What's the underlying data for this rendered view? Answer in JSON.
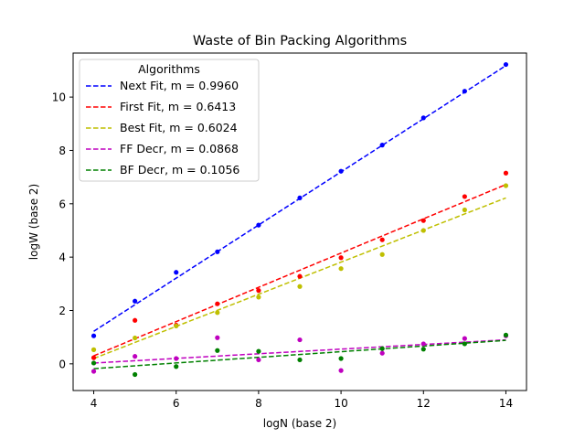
{
  "chart_data": {
    "type": "scatter",
    "title": "Waste of Bin Packing Algorithms",
    "xlabel": "logN (base 2)",
    "ylabel": "logW (base 2)",
    "xlim": [
      3.5,
      14.5
    ],
    "ylim": [
      -1.0,
      11.65
    ],
    "xticks": [
      "4",
      "6",
      "8",
      "10",
      "12",
      "14"
    ],
    "yticks": [
      "0",
      "2",
      "4",
      "6",
      "8",
      "10"
    ],
    "grid": false,
    "legend": {
      "title": "Algorithms",
      "position": "top-left"
    },
    "x": [
      4,
      5,
      6,
      7,
      8,
      9,
      10,
      11,
      12,
      13,
      14
    ],
    "series": [
      {
        "name": "Next Fit, m = 0.9960",
        "color": "#0000ff",
        "points": [
          1.05,
          2.35,
          3.43,
          4.2,
          5.2,
          6.22,
          7.22,
          8.2,
          9.22,
          10.22,
          11.22
        ],
        "fit": {
          "start": 1.22,
          "end": 11.18
        }
      },
      {
        "name": "First Fit, m = 0.6413",
        "color": "#ff0000",
        "points": [
          0.23,
          1.63,
          1.45,
          2.25,
          2.75,
          3.28,
          3.98,
          4.65,
          5.37,
          6.27,
          7.15
        ],
        "fit": {
          "start": 0.3,
          "end": 6.72
        }
      },
      {
        "name": "Best Fit, m = 0.6024",
        "color": "#bfbf00",
        "points": [
          0.53,
          0.97,
          1.42,
          1.92,
          2.5,
          2.9,
          3.57,
          4.1,
          5.0,
          5.77,
          6.68
        ],
        "fit": {
          "start": 0.2,
          "end": 6.22
        }
      },
      {
        "name": "FF Decr, m = 0.0868",
        "color": "#bf00bf",
        "points": [
          -0.28,
          0.28,
          0.2,
          0.98,
          0.15,
          0.9,
          -0.25,
          0.4,
          0.75,
          0.95,
          1.05
        ],
        "fit": {
          "start": 0.03,
          "end": 0.9
        }
      },
      {
        "name": "BF Decr, m = 0.1056",
        "color": "#008000",
        "points": [
          0.03,
          -0.4,
          -0.1,
          0.5,
          0.47,
          0.15,
          0.2,
          0.57,
          0.55,
          0.75,
          1.08
        ],
        "fit": {
          "start": -0.18,
          "end": 0.88
        }
      }
    ]
  }
}
